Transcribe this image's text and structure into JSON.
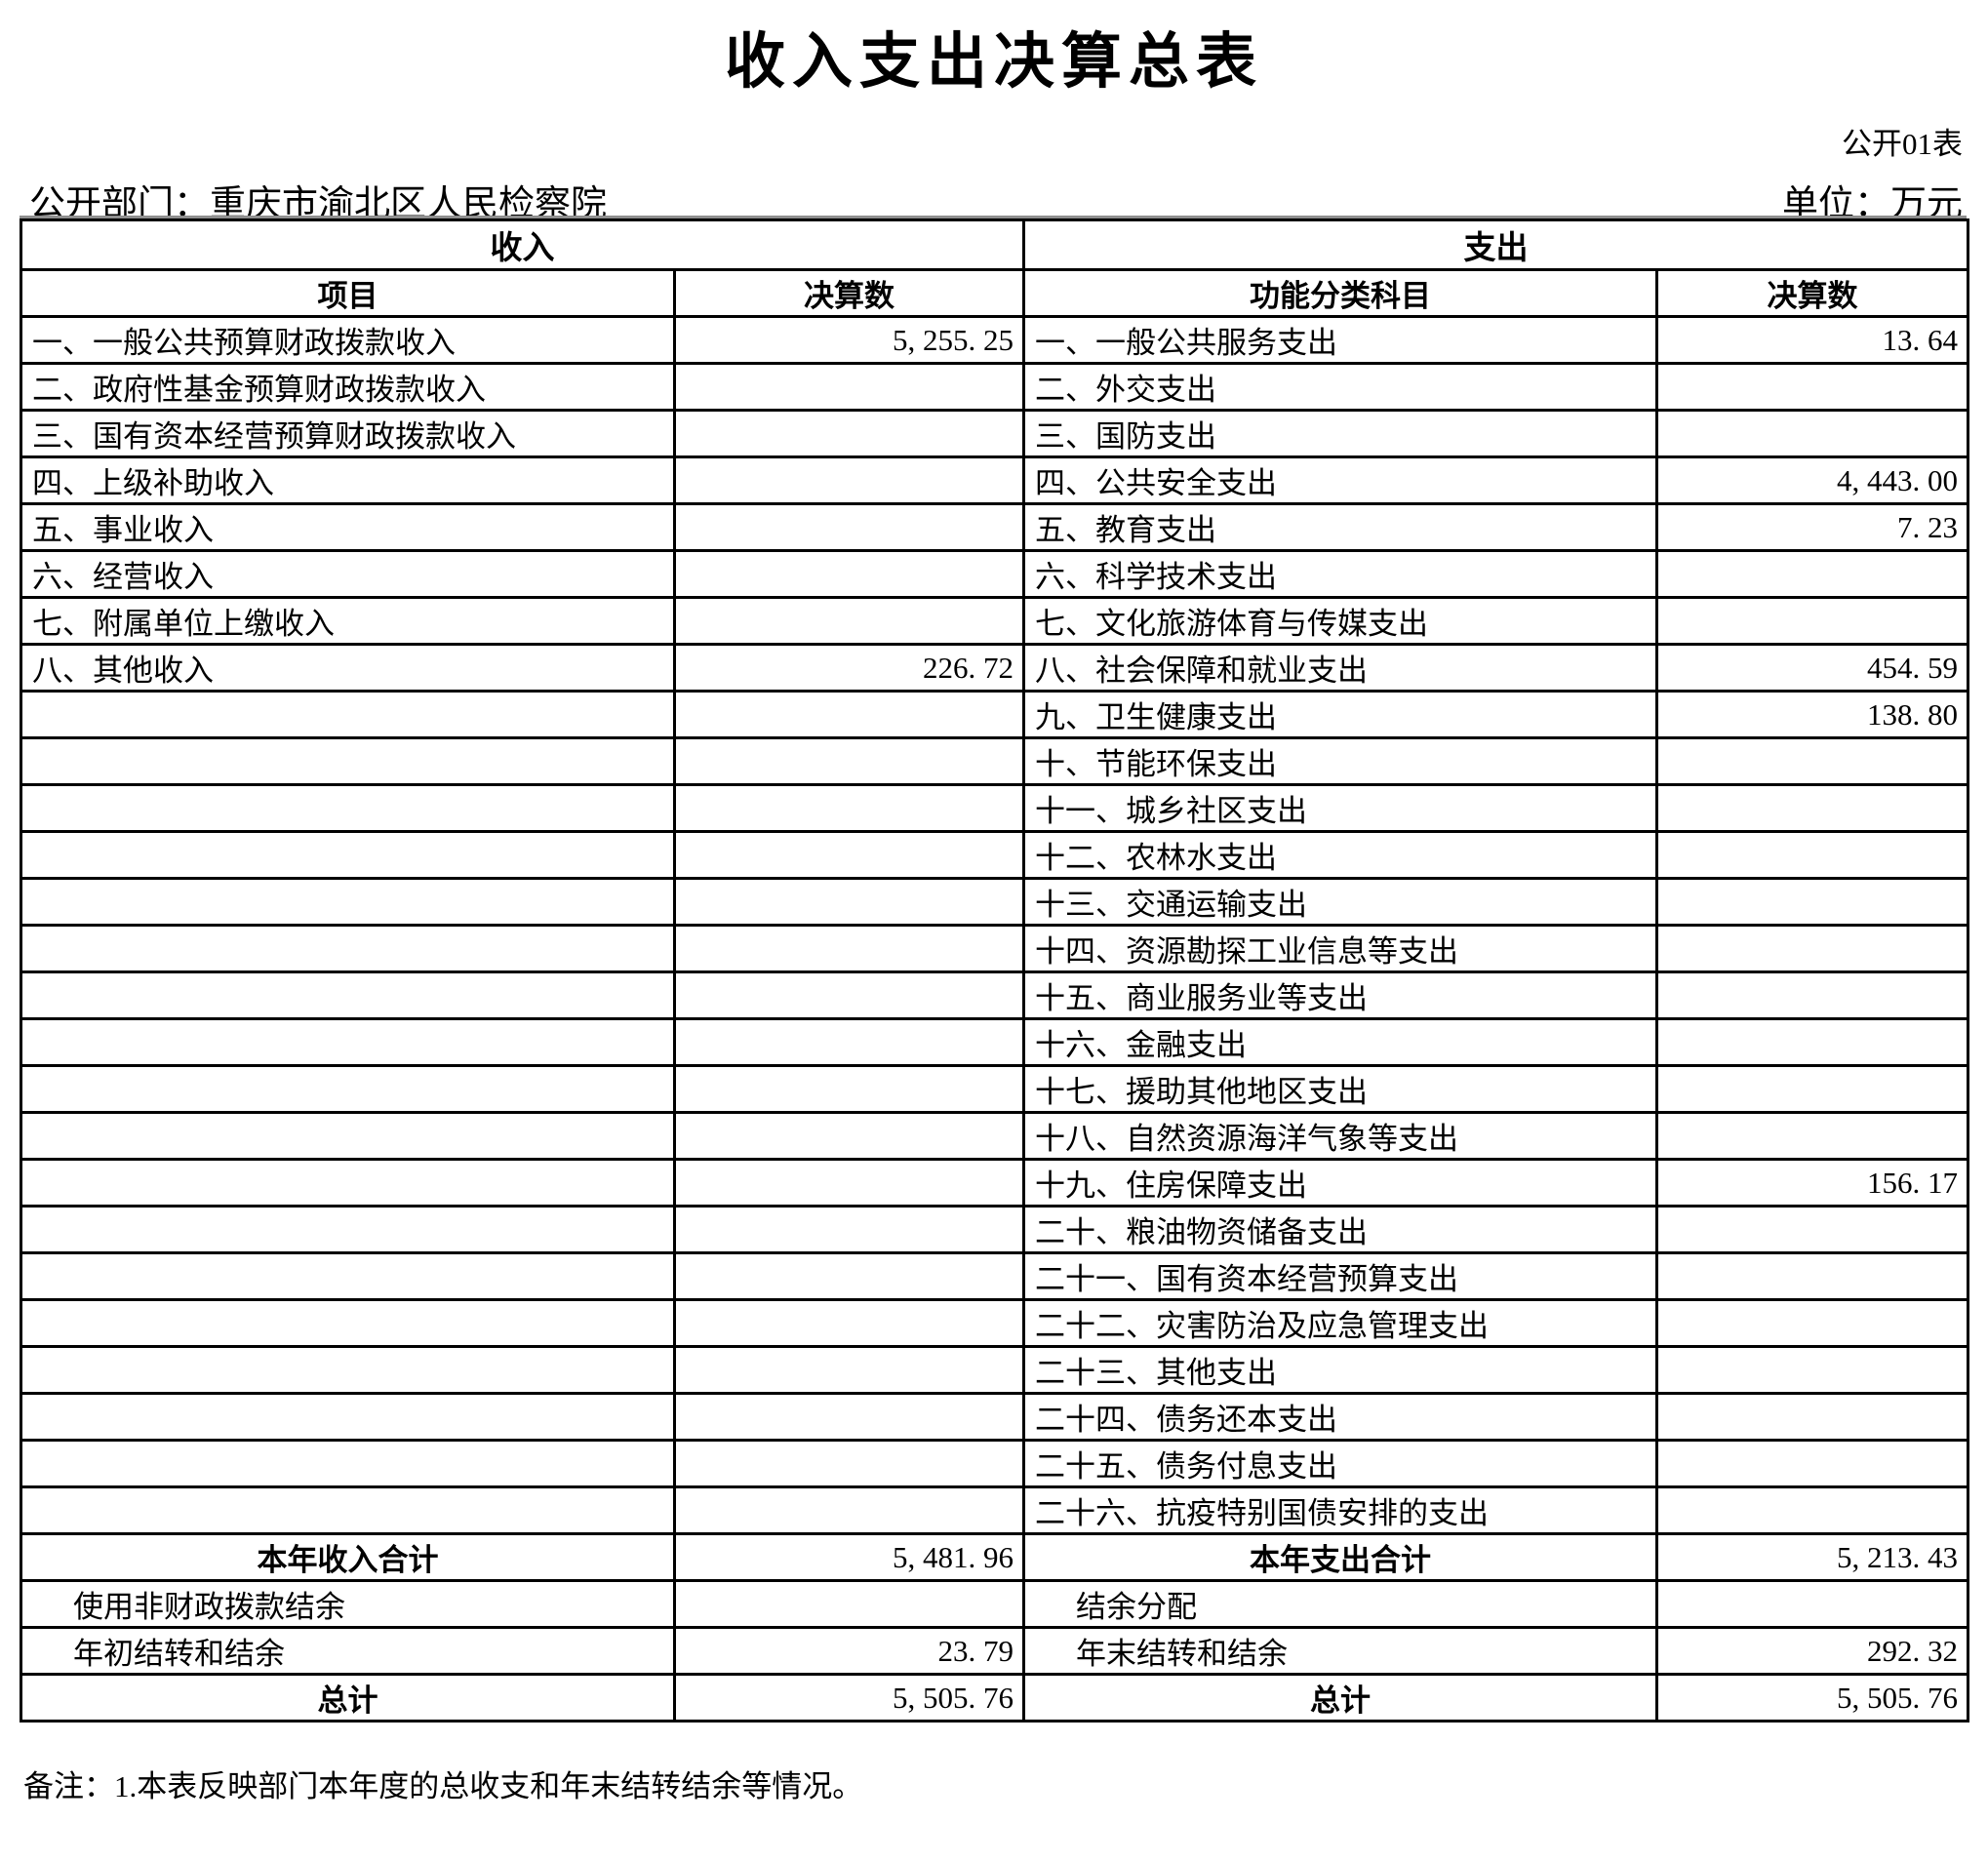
{
  "header": {
    "title": "收入支出决算总表",
    "form_number": "公开01表",
    "department": "公开部门：重庆市渝北区人民检察院",
    "unit": "单位：万元"
  },
  "table": {
    "income_section": "收入",
    "expense_section": "支出",
    "columns": {
      "income_item": "项目",
      "income_amount": "决算数",
      "expense_item": "功能分类科目",
      "expense_amount": "决算数"
    },
    "rows": [
      {
        "income_item": "一、一般公共预算财政拨款收入",
        "income_value": "5, 255. 25",
        "expense_item": "一、一般公共服务支出",
        "expense_value": "13. 64"
      },
      {
        "income_item": "二、政府性基金预算财政拨款收入",
        "income_value": "",
        "expense_item": "二、外交支出",
        "expense_value": ""
      },
      {
        "income_item": "三、国有资本经营预算财政拨款收入",
        "income_value": "",
        "expense_item": "三、国防支出",
        "expense_value": ""
      },
      {
        "income_item": "四、上级补助收入",
        "income_value": "",
        "expense_item": "四、公共安全支出",
        "expense_value": "4, 443. 00"
      },
      {
        "income_item": "五、事业收入",
        "income_value": "",
        "expense_item": "五、教育支出",
        "expense_value": "7. 23"
      },
      {
        "income_item": "六、经营收入",
        "income_value": "",
        "expense_item": "六、科学技术支出",
        "expense_value": ""
      },
      {
        "income_item": "七、附属单位上缴收入",
        "income_value": "",
        "expense_item": "七、文化旅游体育与传媒支出",
        "expense_value": ""
      },
      {
        "income_item": "八、其他收入",
        "income_value": "226. 72",
        "expense_item": "八、社会保障和就业支出",
        "expense_value": "454. 59"
      },
      {
        "income_item": "",
        "income_value": "",
        "expense_item": "九、卫生健康支出",
        "expense_value": "138. 80"
      },
      {
        "income_item": "",
        "income_value": "",
        "expense_item": "十、节能环保支出",
        "expense_value": ""
      },
      {
        "income_item": "",
        "income_value": "",
        "expense_item": "十一、城乡社区支出",
        "expense_value": ""
      },
      {
        "income_item": "",
        "income_value": "",
        "expense_item": "十二、农林水支出",
        "expense_value": ""
      },
      {
        "income_item": "",
        "income_value": "",
        "expense_item": "十三、交通运输支出",
        "expense_value": ""
      },
      {
        "income_item": "",
        "income_value": "",
        "expense_item": "十四、资源勘探工业信息等支出",
        "expense_value": ""
      },
      {
        "income_item": "",
        "income_value": "",
        "expense_item": "十五、商业服务业等支出",
        "expense_value": ""
      },
      {
        "income_item": "",
        "income_value": "",
        "expense_item": "十六、金融支出",
        "expense_value": ""
      },
      {
        "income_item": "",
        "income_value": "",
        "expense_item": "十七、援助其他地区支出",
        "expense_value": ""
      },
      {
        "income_item": "",
        "income_value": "",
        "expense_item": "十八、自然资源海洋气象等支出",
        "expense_value": ""
      },
      {
        "income_item": "",
        "income_value": "",
        "expense_item": "十九、住房保障支出",
        "expense_value": "156. 17"
      },
      {
        "income_item": "",
        "income_value": "",
        "expense_item": "二十、粮油物资储备支出",
        "expense_value": ""
      },
      {
        "income_item": "",
        "income_value": "",
        "expense_item": "二十一、国有资本经营预算支出",
        "expense_value": ""
      },
      {
        "income_item": "",
        "income_value": "",
        "expense_item": "二十二、灾害防治及应急管理支出",
        "expense_value": ""
      },
      {
        "income_item": "",
        "income_value": "",
        "expense_item": "二十三、其他支出",
        "expense_value": ""
      },
      {
        "income_item": "",
        "income_value": "",
        "expense_item": "二十四、债务还本支出",
        "expense_value": ""
      },
      {
        "income_item": "",
        "income_value": "",
        "expense_item": "二十五、债务付息支出",
        "expense_value": ""
      },
      {
        "income_item": "",
        "income_value": "",
        "expense_item": "二十六、抗疫特别国债安排的支出",
        "expense_value": ""
      }
    ],
    "summary_rows": [
      {
        "income_item": "本年收入合计",
        "income_value": "5, 481. 96",
        "expense_item": "本年支出合计",
        "expense_value": "5, 213. 43",
        "style": "total"
      },
      {
        "income_item": "使用非财政拨款结余",
        "income_value": "",
        "expense_item": "结余分配",
        "expense_value": "",
        "style": "indent"
      },
      {
        "income_item": "年初结转和结余",
        "income_value": "23. 79",
        "expense_item": "年末结转和结余",
        "expense_value": "292. 32",
        "style": "indent"
      },
      {
        "income_item": "总计",
        "income_value": "5, 505. 76",
        "expense_item": "总计",
        "expense_value": "5, 505. 76",
        "style": "total"
      }
    ]
  },
  "footnote": "备注：1.本表反映部门本年度的总收支和年末结转结余等情况。"
}
